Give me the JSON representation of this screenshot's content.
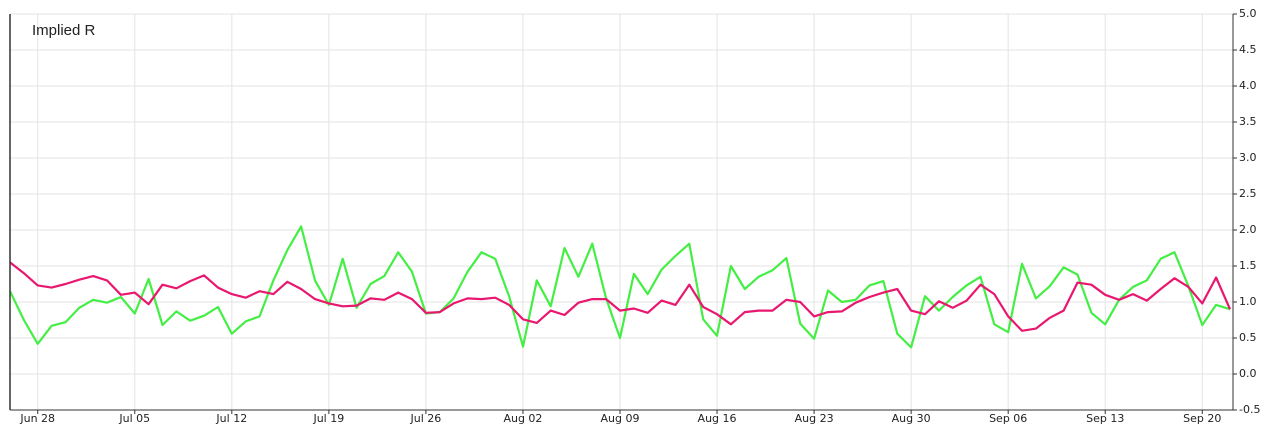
{
  "chart_data": {
    "type": "line",
    "title": "Implied R",
    "categories": [
      null,
      null,
      "Jun 28",
      null,
      null,
      null,
      null,
      null,
      null,
      "Jul 05",
      null,
      null,
      null,
      null,
      null,
      null,
      "Jul 12",
      null,
      null,
      null,
      null,
      null,
      null,
      "Jul 19",
      null,
      null,
      null,
      null,
      null,
      null,
      "Jul 26",
      null,
      null,
      null,
      null,
      null,
      null,
      "Aug 02",
      null,
      null,
      null,
      null,
      null,
      null,
      "Aug 09",
      null,
      null,
      null,
      null,
      null,
      null,
      "Aug 16",
      null,
      null,
      null,
      null,
      null,
      null,
      "Aug 23",
      null,
      null,
      null,
      null,
      null,
      null,
      "Aug 30",
      null,
      null,
      null,
      null,
      null,
      null,
      "Sep 06",
      null,
      null,
      null,
      null,
      null,
      null,
      "Sep 13",
      null,
      null,
      null,
      null,
      null,
      null,
      "Sep 20",
      null,
      null
    ],
    "series": [
      {
        "color": "#44ee44",
        "values": [
          1.15,
          0.75,
          0.42,
          0.67,
          0.72,
          0.92,
          1.03,
          0.99,
          1.07,
          0.84,
          1.32,
          0.68,
          0.87,
          0.74,
          0.81,
          0.93,
          0.56,
          0.73,
          0.8,
          1.3,
          1.72,
          2.05,
          1.3,
          0.96,
          1.6,
          0.92,
          1.25,
          1.36,
          1.69,
          1.42,
          0.84,
          0.86,
          1.05,
          1.42,
          1.69,
          1.6,
          1.08,
          0.38,
          1.3,
          0.94,
          1.75,
          1.35,
          1.81,
          1.05,
          0.5,
          1.39,
          1.11,
          1.45,
          1.64,
          1.81,
          0.76,
          0.53,
          1.5,
          1.18,
          1.35,
          1.44,
          1.61,
          0.7,
          0.49,
          1.16,
          1.0,
          1.03,
          1.23,
          1.29,
          0.56,
          0.37,
          1.08,
          0.88,
          1.07,
          1.23,
          1.35,
          0.69,
          0.58,
          1.53,
          1.05,
          1.22,
          1.48,
          1.38,
          0.85,
          0.69,
          1.03,
          1.21,
          1.3,
          1.6,
          1.69,
          1.22,
          0.68,
          0.96,
          0.9
        ]
      },
      {
        "color": "#e8176f",
        "values": [
          1.55,
          1.4,
          1.23,
          1.2,
          1.25,
          1.31,
          1.36,
          1.3,
          1.1,
          1.13,
          0.97,
          1.24,
          1.19,
          1.29,
          1.37,
          1.2,
          1.11,
          1.06,
          1.15,
          1.11,
          1.28,
          1.18,
          1.04,
          0.98,
          0.94,
          0.95,
          1.05,
          1.03,
          1.13,
          1.04,
          0.85,
          0.86,
          0.98,
          1.05,
          1.04,
          1.06,
          0.96,
          0.76,
          0.71,
          0.88,
          0.82,
          0.99,
          1.04,
          1.04,
          0.88,
          0.91,
          0.85,
          1.02,
          0.96,
          1.24,
          0.93,
          0.83,
          0.69,
          0.86,
          0.88,
          0.88,
          1.03,
          1.0,
          0.8,
          0.86,
          0.87,
          0.99,
          1.07,
          1.13,
          1.18,
          0.88,
          0.83,
          1.01,
          0.92,
          1.02,
          1.24,
          1.11,
          0.8,
          0.6,
          0.63,
          0.78,
          0.88,
          1.27,
          1.24,
          1.1,
          1.03,
          1.11,
          1.02,
          1.18,
          1.33,
          1.21,
          0.98,
          1.34,
          0.9
        ]
      }
    ],
    "ylim": [
      -0.5,
      5.0
    ],
    "yticks": [
      -0.5,
      {
        "value": 0,
        "label": "0.0"
      },
      0.5,
      {
        "value": 1,
        "label": "1.0"
      },
      1.5,
      {
        "value": 2,
        "label": "2.0"
      },
      2.5,
      {
        "value": 3,
        "label": "3.0"
      },
      3.5,
      {
        "value": 4,
        "label": "4.0"
      },
      4.5,
      {
        "value": 5,
        "label": "5.0"
      }
    ],
    "grid": true
  }
}
